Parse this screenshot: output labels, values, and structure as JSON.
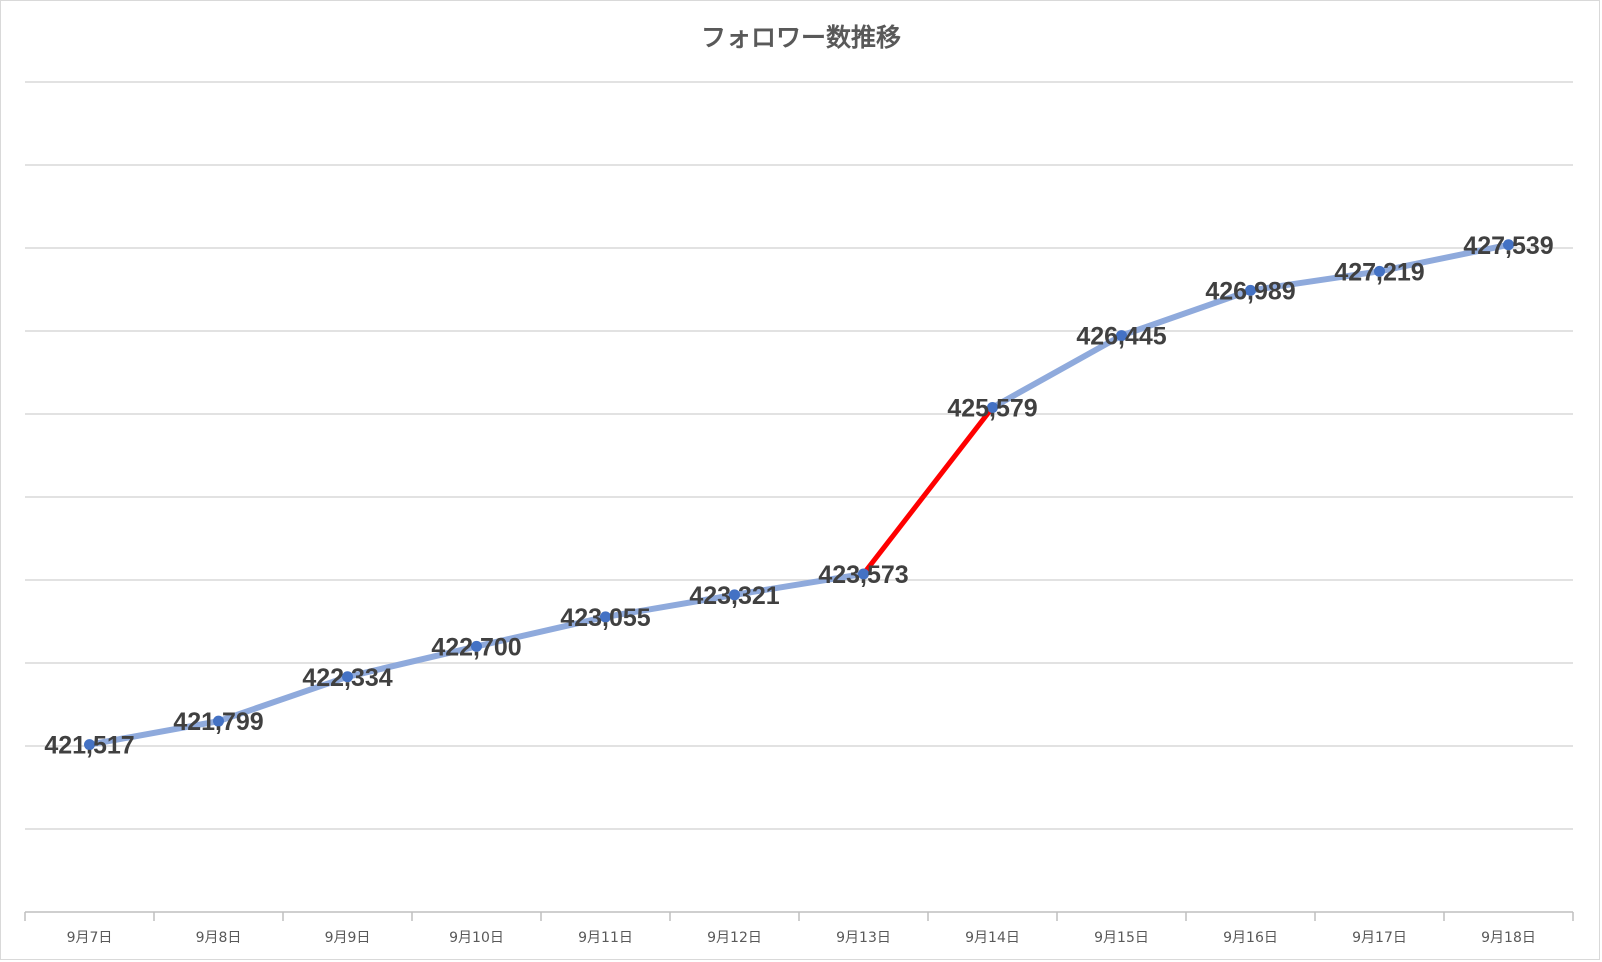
{
  "chart_data": {
    "type": "line",
    "title": "フォロワー数推移",
    "xlabel": "",
    "ylabel": "",
    "categories": [
      "9月7日",
      "9月8日",
      "9月9日",
      "9月10日",
      "9月11日",
      "9月12日",
      "9月13日",
      "9月14日",
      "9月15日",
      "9月16日",
      "9月17日",
      "9月18日"
    ],
    "series": [
      {
        "values": [
          421517,
          421799,
          422334,
          422700,
          423055,
          423321,
          423573,
          425579,
          426445,
          426989,
          427219,
          427539
        ],
        "data_labels": [
          "421,517",
          "421,799",
          "422,334",
          "422,700",
          "423,055",
          "423,321",
          "423,573",
          "425,579",
          "426,445",
          "426,989",
          "427,219",
          "427,539"
        ],
        "color": "#8faadc",
        "marker_color": "#4472c4",
        "highlight_segment": {
          "from_index": 6,
          "to_index": 7,
          "color": "#ff0000"
        }
      }
    ],
    "ylim": [
      419500,
      429500
    ],
    "y_gridlines": 10,
    "y_tick_labels_visible": false,
    "grid": true,
    "legend": "none"
  }
}
